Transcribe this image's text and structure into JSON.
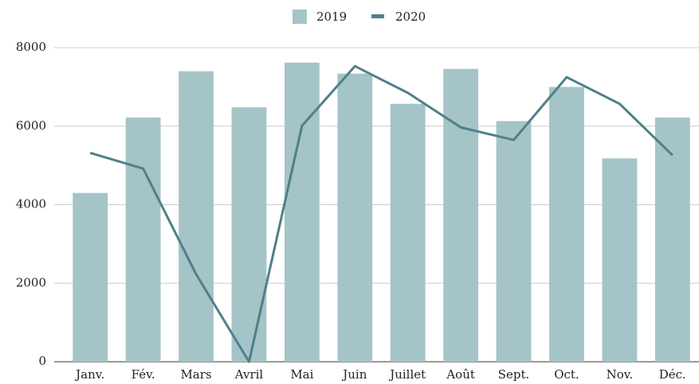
{
  "chart_data": {
    "type": "bar",
    "categories": [
      "Janv.",
      "Fév.",
      "Mars",
      "Avril",
      "Mai",
      "Juin",
      "Juillet",
      "Août",
      "Sept.",
      "Oct.",
      "Nov.",
      "Déc."
    ],
    "series": [
      {
        "name": "2019",
        "type": "bar",
        "color": "#a5c4c7",
        "values": [
          4300,
          6220,
          7400,
          6480,
          7620,
          7340,
          6570,
          7460,
          6130,
          7000,
          5180,
          6220
        ]
      },
      {
        "name": "2020",
        "type": "line",
        "color": "#4e808b",
        "values": [
          5320,
          4920,
          2230,
          0,
          6010,
          7530,
          6850,
          5970,
          5650,
          7250,
          6570,
          5260
        ]
      }
    ],
    "ylim": [
      0,
      8000
    ],
    "yticks": [
      0,
      2000,
      4000,
      6000,
      8000
    ],
    "grid": true,
    "legend": "top"
  }
}
